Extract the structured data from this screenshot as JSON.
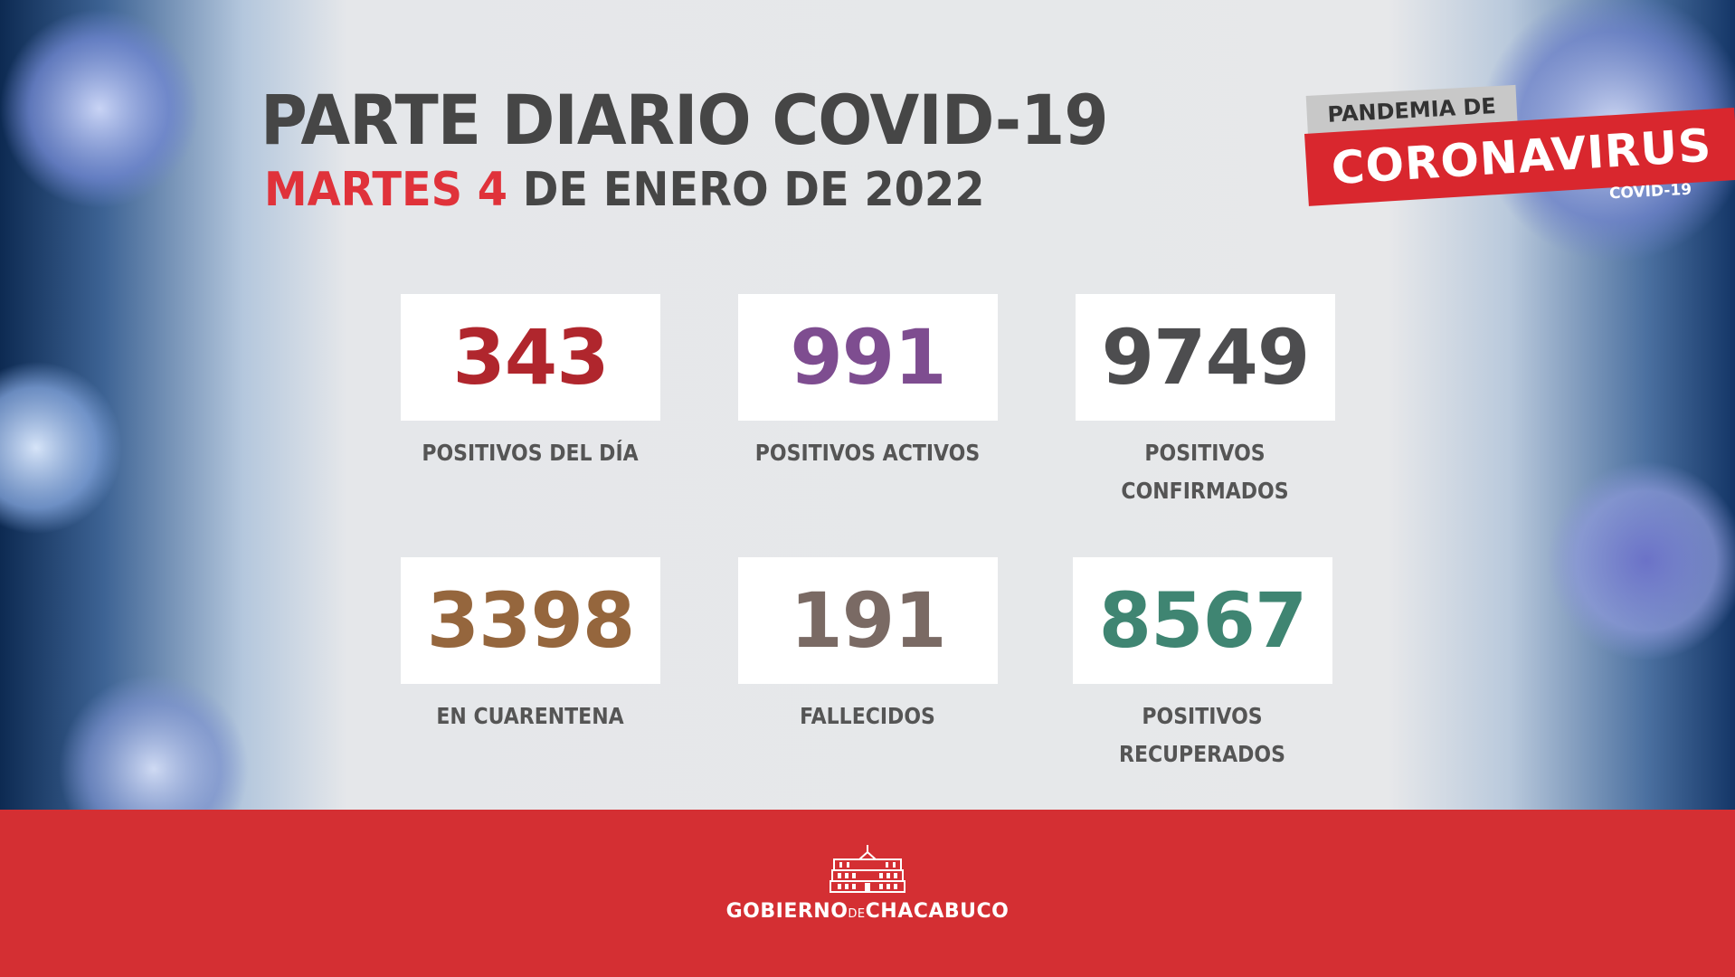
{
  "header": {
    "title": "PARTE DIARIO COVID-19",
    "date_day": "MARTES 4",
    "date_rest": "DE ENERO DE 2022"
  },
  "badge": {
    "top": "PANDEMIA DE",
    "main": "CORONAVIRUS",
    "sub": "COVID-19"
  },
  "stats": [
    {
      "value": "343",
      "label": "POSITIVOS DEL DÍA",
      "color": "#b0262d"
    },
    {
      "value": "991",
      "label": "POSITIVOS ACTIVOS",
      "color": "#7e4d90"
    },
    {
      "value": "9749",
      "label": "POSITIVOS\nCONFIRMADOS",
      "color": "#4d4d4f"
    },
    {
      "value": "3398",
      "label": "EN CUARENTENA",
      "color": "#95663d"
    },
    {
      "value": "191",
      "label": "FALLECIDOS",
      "color": "#7a6a64"
    },
    {
      "value": "8567",
      "label": "POSITIVOS\nRECUPERADOS",
      "color": "#3f8572"
    }
  ],
  "footer": {
    "logo_part1": "GOBIERNO",
    "logo_part2": "DE",
    "logo_part3": "CHACABUCO"
  }
}
